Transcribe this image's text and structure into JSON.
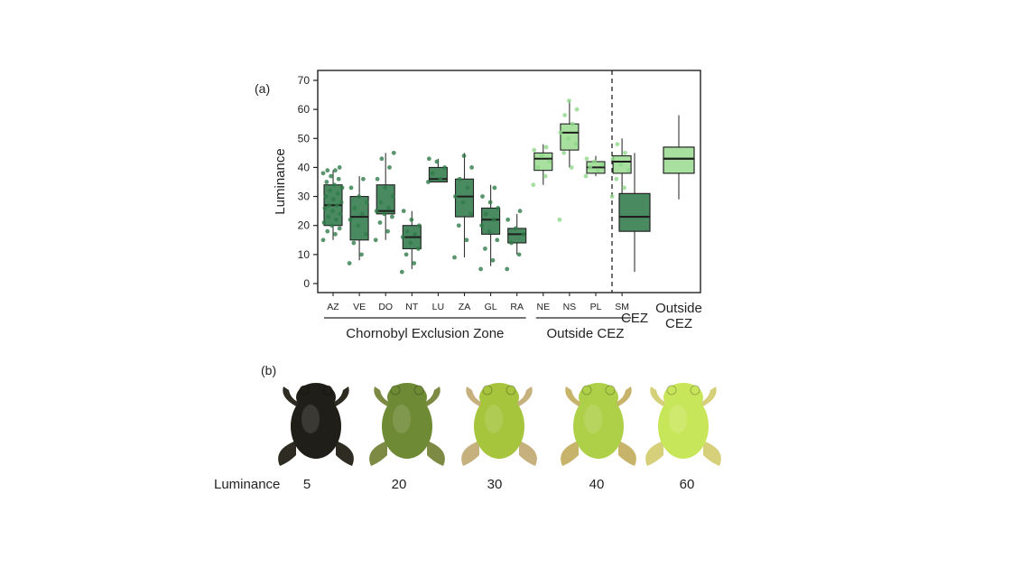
{
  "panel_a_label": "(a)",
  "panel_b_label": "(b)",
  "chart_data": [
    {
      "type": "box",
      "ylabel": "Luminance",
      "ylim": [
        0,
        70
      ],
      "yticks": [
        0,
        10,
        20,
        30,
        40,
        50,
        60,
        70
      ],
      "grid": false,
      "groups": [
        {
          "name": "Chornobyl Exclusion Zone",
          "categories": [
            "AZ",
            "VE",
            "DO",
            "NT",
            "LU",
            "ZA",
            "GL",
            "RA"
          ]
        },
        {
          "name": "Outside CEZ",
          "categories": [
            "NE",
            "NS",
            "PL",
            "SM"
          ]
        }
      ],
      "boxes": [
        {
          "label": "AZ",
          "group": "cez",
          "min": 15,
          "q1": 20,
          "median": 27,
          "q3": 34,
          "max": 39
        },
        {
          "label": "VE",
          "group": "cez",
          "min": 8,
          "q1": 15,
          "median": 23,
          "q3": 30,
          "max": 37
        },
        {
          "label": "DO",
          "group": "cez",
          "min": 15,
          "q1": 24,
          "median": 25,
          "q3": 34,
          "max": 45
        },
        {
          "label": "NT",
          "group": "cez",
          "min": 5,
          "q1": 12,
          "median": 16,
          "q3": 20,
          "max": 25
        },
        {
          "label": "LU",
          "group": "cez",
          "min": 35,
          "q1": 35,
          "median": 36,
          "q3": 40,
          "max": 43
        },
        {
          "label": "ZA",
          "group": "cez",
          "min": 9,
          "q1": 23,
          "median": 30,
          "q3": 36,
          "max": 45
        },
        {
          "label": "GL",
          "group": "cez",
          "min": 6,
          "q1": 17,
          "median": 22,
          "q3": 26,
          "max": 34
        },
        {
          "label": "RA",
          "group": "cez",
          "min": 10,
          "q1": 14,
          "median": 17,
          "q3": 19,
          "max": 24
        },
        {
          "label": "NE",
          "group": "outside",
          "min": 34,
          "q1": 39,
          "median": 43,
          "q3": 45,
          "max": 48
        },
        {
          "label": "NS",
          "group": "outside",
          "min": 40,
          "q1": 46,
          "median": 52,
          "q3": 55,
          "max": 63
        },
        {
          "label": "PL",
          "group": "outside",
          "min": 37,
          "q1": 38,
          "median": 40,
          "q3": 42,
          "max": 44
        },
        {
          "label": "SM",
          "group": "outside",
          "min": 31,
          "q1": 38,
          "median": 42,
          "q3": 44,
          "max": 50
        }
      ],
      "points": {
        "AZ": [
          15,
          17,
          18,
          19,
          20,
          21,
          22,
          23,
          24,
          25,
          26,
          27,
          27,
          28,
          29,
          30,
          31,
          32,
          33,
          34,
          35,
          36,
          37,
          38,
          39,
          39,
          40
        ],
        "VE": [
          7,
          10,
          14,
          17,
          20,
          22,
          24,
          26,
          28,
          30,
          33,
          36
        ],
        "DO": [
          15,
          18,
          21,
          23,
          24,
          25,
          26,
          28,
          30,
          33,
          36,
          40,
          43,
          45
        ],
        "NT": [
          4,
          7,
          10,
          12,
          14,
          16,
          17,
          18,
          20,
          22,
          25
        ],
        "LU": [
          35,
          36,
          38,
          40,
          42,
          43
        ],
        "ZA": [
          9,
          15,
          20,
          24,
          28,
          30,
          33,
          36,
          40,
          44
        ],
        "GL": [
          5,
          8,
          12,
          15,
          18,
          20,
          22,
          24,
          26,
          28,
          30,
          33
        ],
        "RA": [
          5,
          10,
          14,
          17,
          19,
          22,
          25
        ],
        "NE": [
          34,
          37,
          40,
          42,
          44,
          46,
          47
        ],
        "NS": [
          22,
          40,
          45,
          48,
          50,
          52,
          55,
          58,
          60,
          63
        ],
        "PL": [
          37,
          39,
          40,
          41,
          42,
          43
        ],
        "SM": [
          30,
          33,
          36,
          39,
          41,
          43,
          45,
          48
        ]
      },
      "summary_boxes": [
        {
          "label": "CEZ",
          "group": "cez",
          "min": 4,
          "q1": 18,
          "median": 23,
          "q3": 31,
          "max": 45
        },
        {
          "label": "Outside CEZ",
          "group": "outside",
          "min": 29,
          "q1": 38,
          "median": 43,
          "q3": 47,
          "max": 58
        }
      ],
      "colors": {
        "cez": "#4a8a60",
        "outside": "#a8e0a0",
        "cez_point": "#2f7a48",
        "outside_point": "#8fd88a",
        "median_line": "#1e1e1e",
        "frame": "#222222"
      }
    }
  ],
  "panel_b": {
    "caption": "Luminance",
    "frogs": [
      {
        "value": "5",
        "body": "#1f1e18",
        "limb": "#2e2b22"
      },
      {
        "value": "20",
        "body": "#6e8a35",
        "limb": "#7c8a44"
      },
      {
        "value": "30",
        "body": "#a6c43c",
        "limb": "#c6b07e"
      },
      {
        "value": "40",
        "body": "#aed048",
        "limb": "#c8b36a"
      },
      {
        "value": "60",
        "body": "#c8e65a",
        "limb": "#d6d07a"
      }
    ]
  }
}
